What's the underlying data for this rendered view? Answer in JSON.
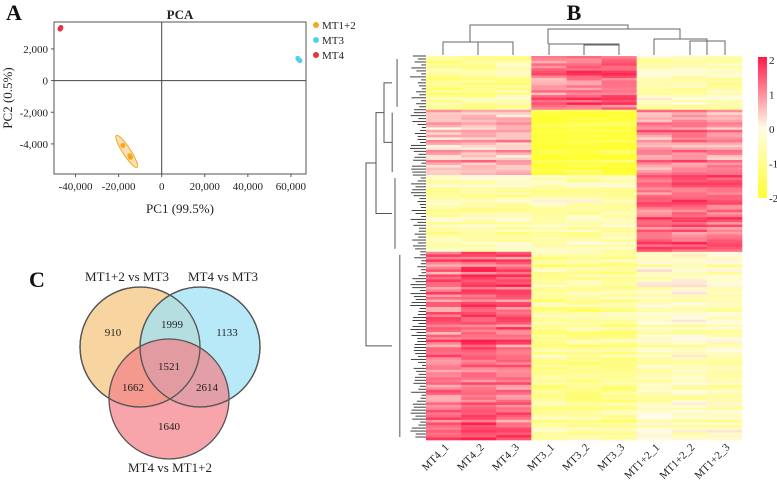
{
  "panels": {
    "a": "A",
    "b": "B",
    "c": "C"
  },
  "chart_data": [
    {
      "type": "scatter",
      "title": "PCA",
      "xlabel": "PC1 (99.5%)",
      "ylabel": "PC2 (0.5%)",
      "xlim": [
        -50000,
        67000
      ],
      "ylim": [
        -5900,
        3700
      ],
      "xticks": [
        -40000,
        -20000,
        0,
        20000,
        40000,
        60000
      ],
      "xtick_labels": [
        "-40,000",
        "-20,000",
        "0",
        "20,000",
        "40,000",
        "60,000"
      ],
      "yticks": [
        2000,
        0,
        -2000,
        -4000
      ],
      "ytick_labels": [
        "2,000",
        "0",
        "-2,000",
        "-4,000"
      ],
      "legend_position": "right",
      "series": [
        {
          "name": "MT1+2",
          "color": "#f5a623",
          "points": [
            [
              -18000,
              -4100
            ],
            [
              -14800,
              -4750
            ],
            [
              -14500,
              -4850
            ]
          ],
          "ellipse": true
        },
        {
          "name": "MT3",
          "color": "#4fd0f0",
          "points": [
            [
              63200,
              1400
            ],
            [
              63800,
              1300
            ],
            [
              64200,
              1250
            ]
          ]
        },
        {
          "name": "MT4",
          "color": "#e8323c",
          "points": [
            [
              -47200,
              3250
            ],
            [
              -47000,
              3300
            ],
            [
              -46800,
              3350
            ]
          ]
        }
      ]
    },
    {
      "type": "heatmap",
      "columns": [
        "MT4_1",
        "MT4_2",
        "MT4_3",
        "MT3_1",
        "MT3_2",
        "MT3_3",
        "MT1+2_1",
        "MT1+2_2",
        "MT1+2_3"
      ],
      "colorbar": {
        "min": -2,
        "max": 2,
        "ticks": [
          "2",
          "1",
          "0",
          "-1",
          "-2"
        ],
        "low_color": "#ffff33",
        "mid_color": "#fffbe6",
        "high_color": "#ff1a4a"
      },
      "row_clusters": [
        {
          "fraction": 0.14,
          "mean_values": [
            -0.8,
            -0.8,
            -0.7,
            1.2,
            1.3,
            1.4,
            -0.5,
            -0.5,
            -0.6
          ]
        },
        {
          "fraction": 0.17,
          "mean_values": [
            0.6,
            0.7,
            0.7,
            -1.8,
            -1.8,
            -1.8,
            1.0,
            1.1,
            1.0
          ]
        },
        {
          "fraction": 0.2,
          "mean_values": [
            -0.6,
            -0.6,
            -0.6,
            -0.6,
            -0.6,
            -0.6,
            1.3,
            1.3,
            1.3
          ]
        },
        {
          "fraction": 0.49,
          "mean_values": [
            1.2,
            1.4,
            1.3,
            -0.9,
            -0.9,
            -0.9,
            -0.4,
            -0.4,
            -0.5
          ]
        }
      ]
    },
    {
      "type": "venn",
      "sets": [
        {
          "name": "MT1+2 vs MT3",
          "color": "#f5c680"
        },
        {
          "name": "MT4 vs MT3",
          "color": "#9fe2f6"
        },
        {
          "name": "MT4 vs MT1+2",
          "color": "#f47f86"
        }
      ],
      "regions": {
        "only_1": "910",
        "only_2": "1133",
        "only_3": "1640",
        "1_2": "1999",
        "1_3": "1662",
        "2_3": "2614",
        "1_2_3": "1521"
      }
    }
  ]
}
